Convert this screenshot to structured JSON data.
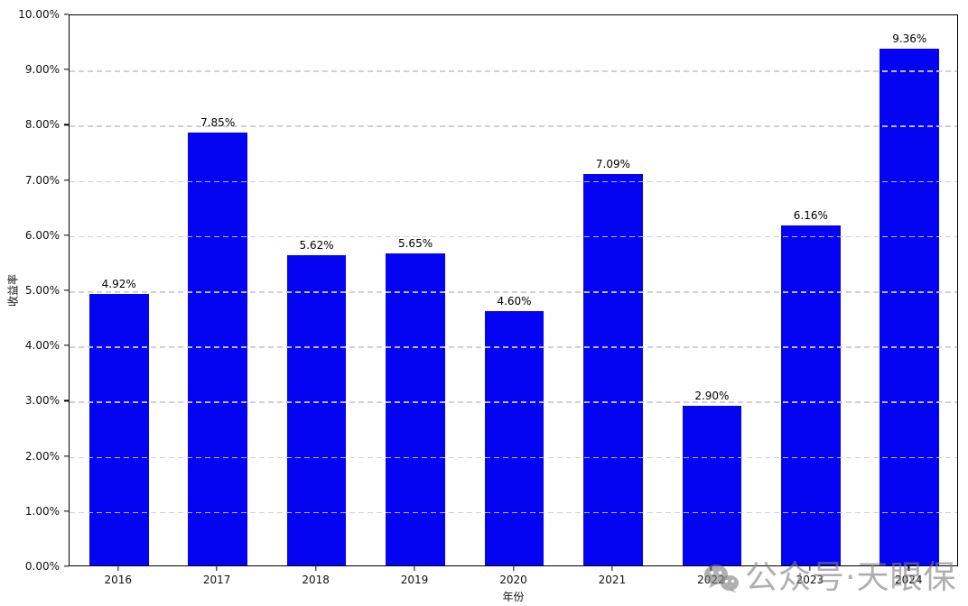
{
  "chart_data": {
    "type": "bar",
    "title": "",
    "xlabel": "年份",
    "ylabel": "收益率",
    "categories": [
      "2016",
      "2017",
      "2018",
      "2019",
      "2020",
      "2021",
      "2022",
      "2023",
      "2024"
    ],
    "values": [
      4.92,
      7.85,
      5.62,
      5.65,
      4.6,
      7.09,
      2.9,
      6.16,
      9.36
    ],
    "bar_labels": [
      "4.92%",
      "7.85%",
      "5.62%",
      "5.65%",
      "4.60%",
      "7.09%",
      "2.90%",
      "6.16%",
      "9.36%"
    ],
    "ylim": [
      0,
      10
    ],
    "ytick_labels": [
      "0.00%",
      "1.00%",
      "2.00%",
      "3.00%",
      "4.00%",
      "5.00%",
      "6.00%",
      "7.00%",
      "8.00%",
      "9.00%",
      "10.00%"
    ],
    "grid": "horizontal-dashed",
    "legend": "none",
    "bar_width_fraction": 0.6
  },
  "watermark": {
    "icon": "wechat-icon",
    "text": "公众号·天眼保"
  },
  "colors": {
    "bar": "#0404f2",
    "gridline": "#cccccc",
    "spine": "#000000",
    "text": "#111111",
    "watermark": "rgba(128,128,128,0.62)",
    "background": "#ffffff"
  }
}
